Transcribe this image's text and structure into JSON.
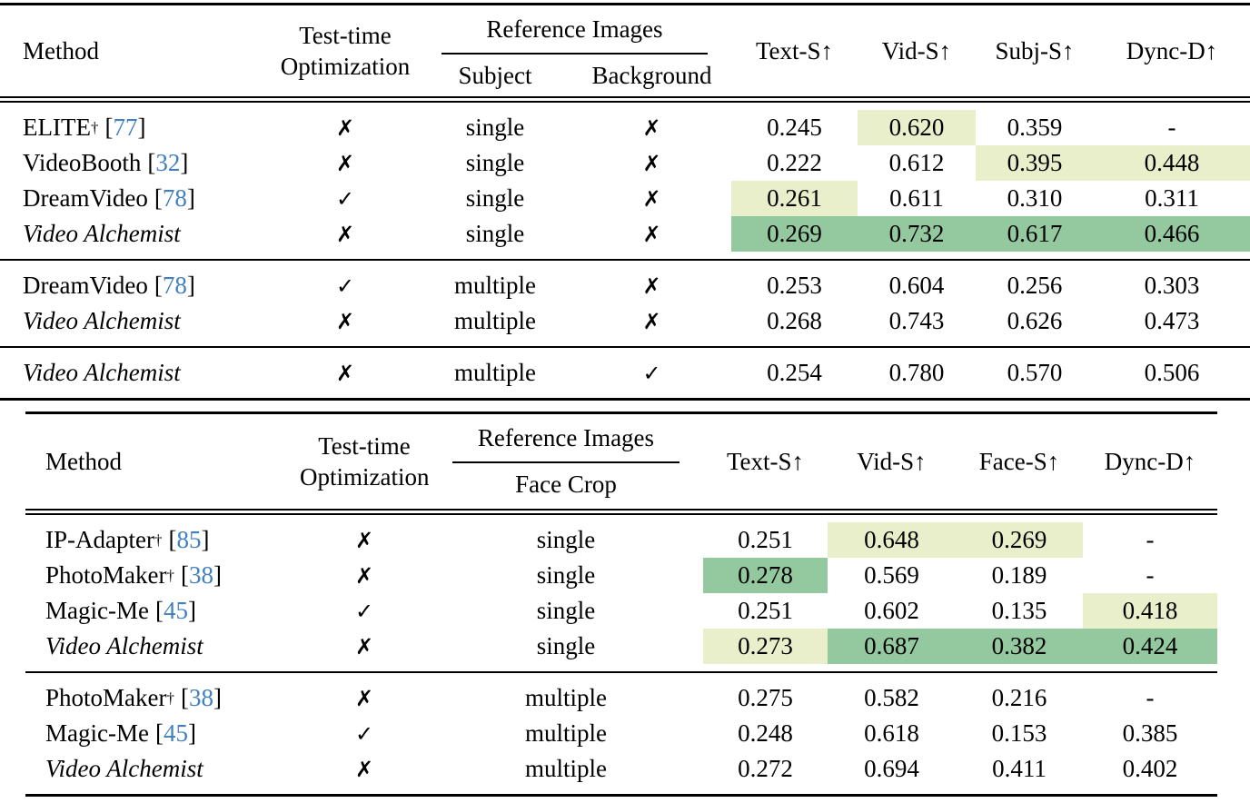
{
  "colors": {
    "hl-light": "#e9efcb",
    "hl-strong": "#94c89e",
    "cite": "#4080c0"
  },
  "table1": {
    "header": {
      "method": "Method",
      "tto1": "Test-time",
      "tto2": "Optimization",
      "ref": "Reference Images",
      "sub": "Subject",
      "bg": "Background",
      "m1": "Text-S↑",
      "m2": "Vid-S↑",
      "m3": "Subj-S↑",
      "m4": "Dync-D↑"
    },
    "g1": [
      {
        "name": "ELITE",
        "style": "",
        "dagger": "†",
        "co": "[",
        "cite": "77",
        "cc": "]",
        "tto": "✗",
        "ref1": "single",
        "ref2": "✗",
        "v1": "0.245",
        "h1": "",
        "v2": "0.620",
        "h2": "hl-light",
        "v3": "0.359",
        "h3": "",
        "v4": "-",
        "h4": ""
      },
      {
        "name": "VideoBooth",
        "style": "",
        "dagger": "",
        "co": "[",
        "cite": "32",
        "cc": "]",
        "tto": "✗",
        "ref1": "single",
        "ref2": "✗",
        "v1": "0.222",
        "h1": "",
        "v2": "0.612",
        "h2": "",
        "v3": "0.395",
        "h3": "hl-light",
        "v4": "0.448",
        "h4": "hl-light"
      },
      {
        "name": "DreamVideo",
        "style": "",
        "dagger": "",
        "co": "[",
        "cite": "78",
        "cc": "]",
        "tto": "✓",
        "ref1": "single",
        "ref2": "✗",
        "v1": "0.261",
        "h1": "hl-light",
        "v2": "0.611",
        "h2": "",
        "v3": "0.310",
        "h3": "",
        "v4": "0.311",
        "h4": ""
      },
      {
        "name": "Video Alchemist",
        "style": "italic",
        "dagger": "",
        "co": "",
        "cite": "",
        "cc": "",
        "tto": "✗",
        "ref1": "single",
        "ref2": "✗",
        "v1": "0.269",
        "h1": "hl-strong",
        "v2": "0.732",
        "h2": "hl-strong",
        "v3": "0.617",
        "h3": "hl-strong",
        "v4": "0.466",
        "h4": "hl-strong"
      }
    ],
    "g2": [
      {
        "name": "DreamVideo",
        "style": "",
        "dagger": "",
        "co": "[",
        "cite": "78",
        "cc": "]",
        "tto": "✓",
        "ref1": "multiple",
        "ref2": "✗",
        "v1": "0.253",
        "h1": "",
        "v2": "0.604",
        "h2": "",
        "v3": "0.256",
        "h3": "",
        "v4": "0.303",
        "h4": ""
      },
      {
        "name": "Video Alchemist",
        "style": "italic",
        "dagger": "",
        "co": "",
        "cite": "",
        "cc": "",
        "tto": "✗",
        "ref1": "multiple",
        "ref2": "✗",
        "v1": "0.268",
        "h1": "",
        "v2": "0.743",
        "h2": "",
        "v3": "0.626",
        "h3": "",
        "v4": "0.473",
        "h4": ""
      }
    ],
    "g3": [
      {
        "name": "Video Alchemist",
        "style": "italic",
        "dagger": "",
        "co": "",
        "cite": "",
        "cc": "",
        "tto": "✗",
        "ref1": "multiple",
        "ref2": "✓",
        "v1": "0.254",
        "h1": "",
        "v2": "0.780",
        "h2": "",
        "v3": "0.570",
        "h3": "",
        "v4": "0.506",
        "h4": ""
      }
    ]
  },
  "table2": {
    "header": {
      "method": "Method",
      "tto1": "Test-time",
      "tto2": "Optimization",
      "ref": "Reference Images",
      "face": "Face Crop",
      "m1": "Text-S↑",
      "m2": "Vid-S↑",
      "m3": "Face-S↑",
      "m4": "Dync-D↑"
    },
    "g1": [
      {
        "name": "IP-Adapter",
        "style": "",
        "dagger": "†",
        "co": "[",
        "cite": "85",
        "cc": "]",
        "tto": "✗",
        "ref1": "single",
        "v1": "0.251",
        "h1": "",
        "v2": "0.648",
        "h2": "hl-light",
        "v3": "0.269",
        "h3": "hl-light",
        "v4": "-",
        "h4": ""
      },
      {
        "name": "PhotoMaker",
        "style": "",
        "dagger": "†",
        "co": "[",
        "cite": "38",
        "cc": "]",
        "tto": "✗",
        "ref1": "single",
        "v1": "0.278",
        "h1": "hl-strong",
        "v2": "0.569",
        "h2": "",
        "v3": "0.189",
        "h3": "",
        "v4": "-",
        "h4": ""
      },
      {
        "name": "Magic-Me",
        "style": "",
        "dagger": "",
        "co": "[",
        "cite": "45",
        "cc": "]",
        "tto": "✓",
        "ref1": "single",
        "v1": "0.251",
        "h1": "",
        "v2": "0.602",
        "h2": "",
        "v3": "0.135",
        "h3": "",
        "v4": "0.418",
        "h4": "hl-light"
      },
      {
        "name": "Video Alchemist",
        "style": "italic",
        "dagger": "",
        "co": "",
        "cite": "",
        "cc": "",
        "tto": "✗",
        "ref1": "single",
        "v1": "0.273",
        "h1": "hl-light",
        "v2": "0.687",
        "h2": "hl-strong",
        "v3": "0.382",
        "h3": "hl-strong",
        "v4": "0.424",
        "h4": "hl-strong"
      }
    ],
    "g2": [
      {
        "name": "PhotoMaker",
        "style": "",
        "dagger": "†",
        "co": "[",
        "cite": "38",
        "cc": "]",
        "tto": "✗",
        "ref1": "multiple",
        "v1": "0.275",
        "h1": "",
        "v2": "0.582",
        "h2": "",
        "v3": "0.216",
        "h3": "",
        "v4": "-",
        "h4": ""
      },
      {
        "name": "Magic-Me",
        "style": "",
        "dagger": "",
        "co": "[",
        "cite": "45",
        "cc": "]",
        "tto": "✓",
        "ref1": "multiple",
        "v1": "0.248",
        "h1": "",
        "v2": "0.618",
        "h2": "",
        "v3": "0.153",
        "h3": "",
        "v4": "0.385",
        "h4": ""
      },
      {
        "name": "Video Alchemist",
        "style": "italic",
        "dagger": "",
        "co": "",
        "cite": "",
        "cc": "",
        "tto": "✗",
        "ref1": "multiple",
        "v1": "0.272",
        "h1": "",
        "v2": "0.694",
        "h2": "",
        "v3": "0.411",
        "h3": "",
        "v4": "0.402",
        "h4": ""
      }
    ]
  }
}
